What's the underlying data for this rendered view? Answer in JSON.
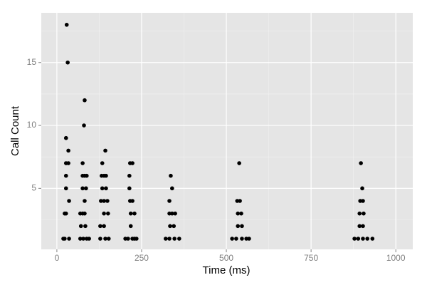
{
  "chart_data": {
    "type": "scatter",
    "xlabel": "Time (ms)",
    "ylabel": "Call Count",
    "x": [
      29,
      32,
      27,
      34,
      27,
      34,
      27,
      27,
      36,
      23,
      27,
      19,
      23,
      36,
      82,
      80,
      76,
      76,
      82,
      88,
      76,
      86,
      82,
      69,
      76,
      82,
      71,
      84,
      69,
      78,
      88,
      95,
      143,
      134,
      132,
      139,
      145,
      134,
      145,
      130,
      139,
      149,
      139,
      151,
      128,
      139,
      128,
      143,
      153,
      216,
      223,
      214,
      214,
      216,
      223,
      218,
      229,
      218,
      202,
      210,
      223,
      229,
      235,
      336,
      340,
      332,
      332,
      340,
      349,
      334,
      345,
      321,
      332,
      347,
      361,
      538,
      532,
      540,
      534,
      544,
      534,
      546,
      517,
      529,
      546,
      559,
      567,
      897,
      901,
      895,
      903,
      893,
      905,
      893,
      903,
      878,
      889,
      903,
      916,
      931
    ],
    "y": [
      18,
      15,
      9,
      8,
      7,
      7,
      6,
      5,
      4,
      3,
      3,
      1,
      1,
      1,
      12,
      10,
      7,
      6,
      6,
      6,
      5,
      5,
      4,
      3,
      3,
      3,
      2,
      2,
      1,
      1,
      1,
      1,
      8,
      7,
      6,
      6,
      6,
      5,
      5,
      4,
      4,
      4,
      3,
      3,
      2,
      2,
      1,
      1,
      1,
      7,
      7,
      6,
      5,
      4,
      4,
      3,
      3,
      2,
      1,
      1,
      1,
      1,
      1,
      6,
      5,
      4,
      3,
      3,
      3,
      2,
      2,
      1,
      1,
      1,
      1,
      7,
      4,
      4,
      3,
      3,
      2,
      2,
      1,
      1,
      1,
      1,
      1,
      7,
      5,
      4,
      4,
      3,
      3,
      2,
      2,
      1,
      1,
      1,
      1,
      1
    ],
    "color": "#000000",
    "xlim": [
      -46,
      1050
    ],
    "ylim": [
      0.15,
      18.95
    ],
    "xticks": [
      0,
      250,
      500,
      750,
      1000
    ],
    "yticks": [
      5,
      10,
      15
    ],
    "x_minor_grid": [
      125,
      375,
      625,
      875
    ],
    "y_minor_grid": [
      2.5,
      7.5,
      12.5,
      17.5
    ],
    "grid": true
  }
}
